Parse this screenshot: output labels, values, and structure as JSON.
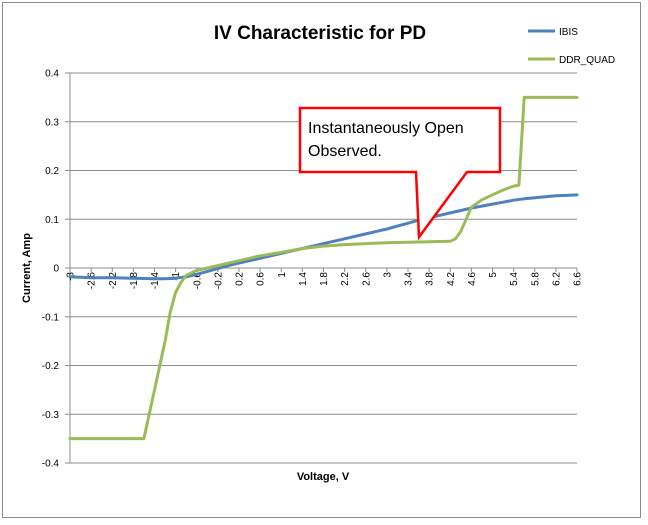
{
  "chart_data": {
    "type": "line",
    "title": "IV Characteristic for PD",
    "xlabel": "Voltage, V",
    "ylabel": "Current, Amp",
    "ylim": [
      -0.4,
      0.4
    ],
    "yticks": [
      -0.4,
      -0.3,
      -0.2,
      -0.1,
      0,
      0.1,
      0.2,
      0.3,
      0.4
    ],
    "ytick_labels": [
      "-0.4",
      "-0.3",
      "-0.2",
      "-0.1",
      "0",
      "0.1",
      "0.2",
      "0.3",
      "0.4"
    ],
    "xlim": [
      -3,
      6.6
    ],
    "xtick_labels": [
      "-3",
      "-2.6",
      "-2.2",
      "-1.8",
      "-1.4",
      "-1",
      "-0.6",
      "-0.2",
      "0.2",
      "0.6",
      "1",
      "1.4",
      "1.8",
      "2.2",
      "2.6",
      "3",
      "3.4",
      "3.8",
      "4.2",
      "4.6",
      "5",
      "5.4",
      "5.8",
      "6.2",
      "6.6"
    ],
    "grid": "horizontal",
    "legend": "right",
    "series": [
      {
        "name": "IBIS",
        "color": "#4f81bd",
        "x": [
          -3,
          -2.6,
          -2.2,
          -1.8,
          -1.4,
          -1.2,
          -1,
          -0.8,
          -0.6,
          -0.4,
          -0.2,
          0,
          0.2,
          0.4,
          0.6,
          0.8,
          1,
          1.2,
          1.4,
          1.6,
          1.8,
          2,
          2.2,
          2.4,
          2.6,
          2.8,
          3,
          3.2,
          3.4,
          3.6,
          3.8,
          4,
          4.2,
          4.4,
          4.6,
          4.8,
          5,
          5.2,
          5.4,
          5.6,
          5.8,
          6,
          6.2,
          6.4,
          6.6
        ],
        "values": [
          -0.018,
          -0.02,
          -0.02,
          -0.021,
          -0.022,
          -0.022,
          -0.021,
          -0.018,
          -0.013,
          -0.007,
          -0.001,
          0.005,
          0.01,
          0.015,
          0.02,
          0.025,
          0.03,
          0.035,
          0.04,
          0.045,
          0.05,
          0.055,
          0.06,
          0.065,
          0.07,
          0.075,
          0.08,
          0.086,
          0.092,
          0.098,
          0.103,
          0.108,
          0.113,
          0.118,
          0.123,
          0.127,
          0.131,
          0.135,
          0.139,
          0.142,
          0.144,
          0.146,
          0.148,
          0.149,
          0.15
        ]
      },
      {
        "name": "DDR_QUAD",
        "color": "#9bbb59",
        "x": [
          -3,
          -1.6,
          -1.5,
          -1.4,
          -1.3,
          -1.2,
          -1.1,
          -1,
          -0.9,
          -0.8,
          -0.6,
          -0.4,
          -0.2,
          0,
          0.2,
          0.6,
          1,
          1.4,
          1.8,
          2.2,
          2.6,
          3,
          3.4,
          3.8,
          4.2,
          4.3,
          4.4,
          4.5,
          4.6,
          4.8,
          5,
          5.2,
          5.4,
          5.5,
          5.6,
          5.8,
          6.2,
          6.6
        ],
        "values": [
          -0.35,
          -0.35,
          -0.3,
          -0.25,
          -0.2,
          -0.15,
          -0.09,
          -0.05,
          -0.03,
          -0.015,
          -0.005,
          0,
          0.005,
          0.01,
          0.015,
          0.025,
          0.032,
          0.04,
          0.045,
          0.048,
          0.05,
          0.052,
          0.053,
          0.054,
          0.055,
          0.06,
          0.075,
          0.1,
          0.125,
          0.14,
          0.15,
          0.16,
          0.168,
          0.17,
          0.35,
          0.35,
          0.35,
          0.35
        ]
      }
    ],
    "annotation": {
      "lines": [
        "Instantaneously Open",
        "Observed."
      ],
      "border_color": "#ff0000"
    }
  }
}
